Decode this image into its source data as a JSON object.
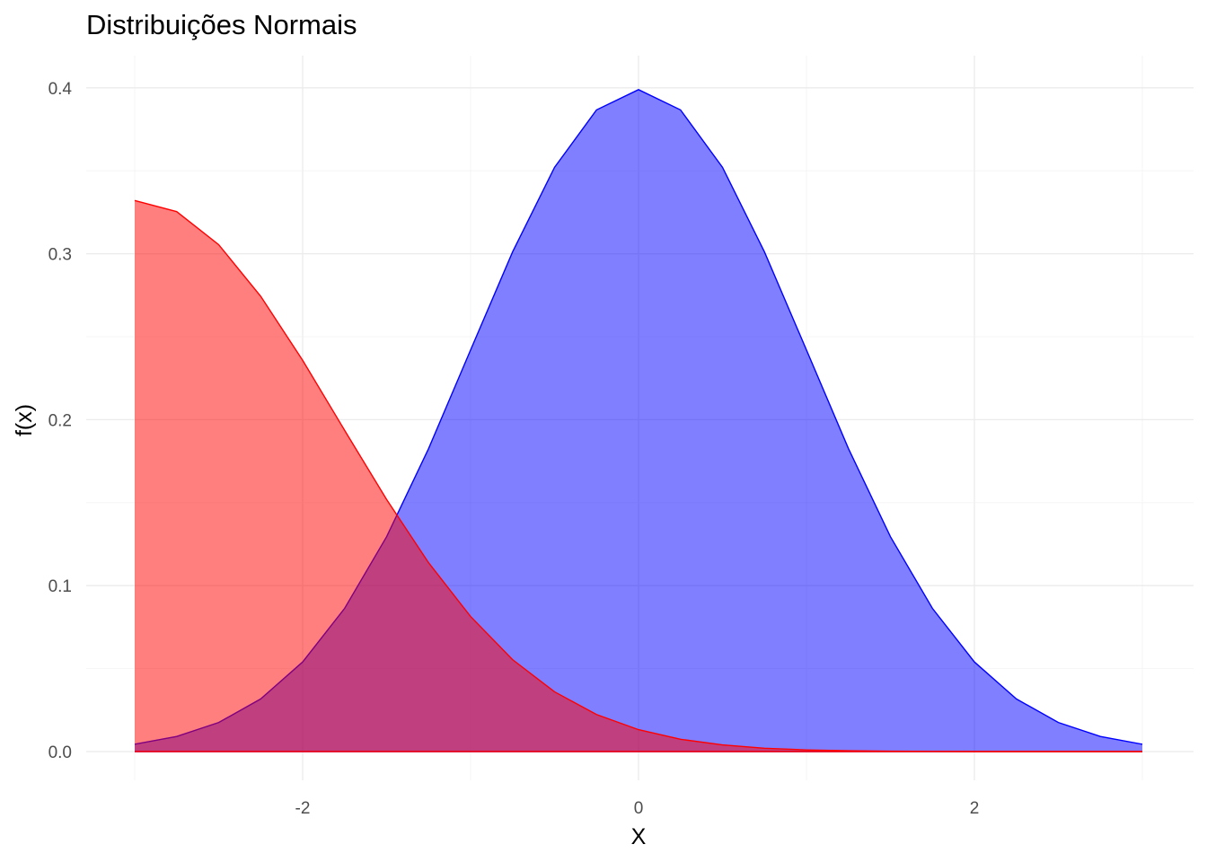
{
  "chart_data": {
    "type": "area",
    "title": "Distribuições Normais",
    "xlabel": "X",
    "ylabel": "f(x)",
    "xlim": [
      -3.0,
      3.0
    ],
    "ylim": [
      0,
      0.4
    ],
    "x_ticks": [
      -2,
      0,
      2
    ],
    "x_tick_labels": [
      "-2",
      "0",
      "2"
    ],
    "y_ticks": [
      0.0,
      0.1,
      0.2,
      0.3,
      0.4
    ],
    "y_tick_labels": [
      "0.0",
      "0.1",
      "0.2",
      "0.3",
      "0.4"
    ],
    "grid": true,
    "series": [
      {
        "color": "#0000ff",
        "fill_opacity": 0.5,
        "x": [
          -3.0,
          -2.75,
          -2.5,
          -2.25,
          -2.0,
          -1.75,
          -1.5,
          -1.25,
          -1.0,
          -0.75,
          -0.5,
          -0.25,
          0.0,
          0.25,
          0.5,
          0.75,
          1.0,
          1.25,
          1.5,
          1.75,
          2.0,
          2.25,
          2.5,
          2.75,
          3.0
        ],
        "y": [
          0.0044,
          0.0091,
          0.0175,
          0.0317,
          0.054,
          0.0863,
          0.1295,
          0.1826,
          0.242,
          0.3011,
          0.3521,
          0.3867,
          0.3989,
          0.3867,
          0.3521,
          0.3011,
          0.242,
          0.1826,
          0.1295,
          0.0863,
          0.054,
          0.0317,
          0.0175,
          0.0091,
          0.0044
        ]
      },
      {
        "color": "#ff0000",
        "fill_opacity": 0.5,
        "x": [
          -3.0,
          -2.75,
          -2.5,
          -2.25,
          -2.0,
          -1.75,
          -1.5,
          -1.25,
          -1.0,
          -0.75,
          -0.5,
          -0.25,
          0.0,
          0.25,
          0.5,
          0.75,
          1.0,
          1.25,
          1.5,
          1.75,
          2.0,
          2.25,
          2.5,
          2.75,
          3.0
        ],
        "y": [
          0.3321,
          0.3254,
          0.3055,
          0.2744,
          0.2358,
          0.1936,
          0.1519,
          0.1138,
          0.0814,
          0.0554,
          0.036,
          0.0223,
          0.0132,
          0.0074,
          0.004,
          0.002,
          0.001,
          0.0005,
          0.0002,
          0.0001,
          0.0,
          0.0,
          0.0,
          0.0,
          0.0
        ]
      }
    ]
  }
}
